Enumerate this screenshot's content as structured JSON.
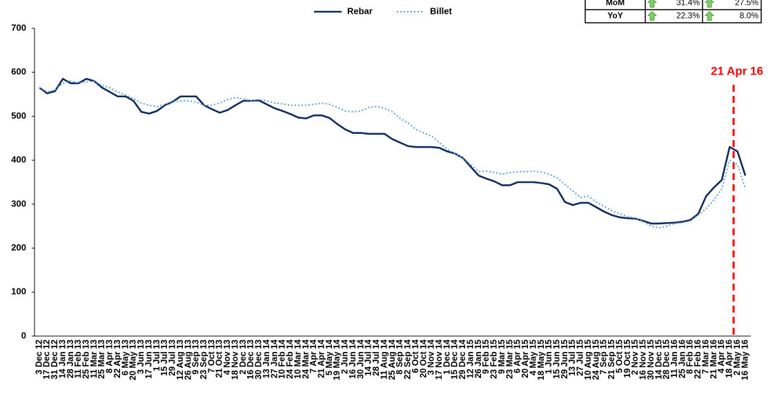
{
  "chart_data": {
    "type": "line",
    "annotation": "21 Apr 16",
    "categories": [
      "3 Dec 12",
      "17 Dec 12",
      "31 Dec 12",
      "14 Jan 13",
      "28 Jan 13",
      "11 Feb 13",
      "25 Feb 13",
      "11 Mar 13",
      "25 Mar 13",
      "8 Apr 13",
      "22 Apr 13",
      "6 May 13",
      "20 May 13",
      "3 Jun 13",
      "17 Jun 13",
      "1 Jul 13",
      "15 Jul 13",
      "29 Jul 13",
      "12 Aug 13",
      "26 Aug 13",
      "9 Sep 13",
      "23 Sep 13",
      "7 Oct 13",
      "21 Oct 13",
      "4 Nov 13",
      "18 Nov 13",
      "2 Dec 13",
      "16 Dec 13",
      "30 Dec 13",
      "13 Jan 14",
      "27 Jan 14",
      "10 Feb 14",
      "24 Feb 14",
      "10 Mar 14",
      "24 Mar 14",
      "7 Apr 14",
      "21 Apr 14",
      "5 May 14",
      "19 May 14",
      "2 Jun 14",
      "16 Jun 14",
      "30 Jun 14",
      "14 Jul 14",
      "28 Jul 14",
      "11 Aug 14",
      "25 Aug 14",
      "8 Sep 14",
      "22 Sep 14",
      "6 Oct 14",
      "20 Oct 14",
      "3 Nov 14",
      "17 Nov 14",
      "1 Dec 14",
      "15 Dec 14",
      "29 Dec 14",
      "12 Jan 15",
      "26 Jan 15",
      "9 Feb 15",
      "23 Feb 15",
      "9 Mar 15",
      "23 Mar 15",
      "6 Apr 15",
      "20 Apr 15",
      "4 May 15",
      "18 May 15",
      "1 Jun 15",
      "15 Jun 15",
      "29 Jun 15",
      "13 Jul 15",
      "27 Jul 15",
      "10 Aug 15",
      "24 Aug 15",
      "7 Sep 15",
      "21 Sep 15",
      "5 Oct 15",
      "19 Oct 15",
      "2 Nov 15",
      "16 Nov 15",
      "30 Nov 15",
      "14 Dec 15",
      "28 Dec 15",
      "11 Jan 16",
      "25 Jan 16",
      "8 Feb 16",
      "22 Feb 16",
      "7 Mar 16",
      "21 Mar 16",
      "4 Apr 16",
      "18 Apr 16",
      "2 May 16",
      "16 May 16"
    ],
    "series": [
      {
        "name": "Rebar",
        "color": "#0f2a5f",
        "style": "solid",
        "values": [
          565,
          552,
          557,
          585,
          575,
          575,
          585,
          580,
          565,
          555,
          545,
          545,
          535,
          510,
          506,
          512,
          525,
          533,
          545,
          545,
          545,
          525,
          516,
          508,
          514,
          525,
          535,
          535,
          536,
          527,
          518,
          512,
          505,
          497,
          495,
          502,
          502,
          496,
          482,
          470,
          462,
          462,
          460,
          460,
          460,
          448,
          440,
          432,
          430,
          430,
          430,
          428,
          420,
          415,
          405,
          385,
          365,
          358,
          352,
          343,
          343,
          350,
          350,
          350,
          348,
          345,
          335,
          305,
          298,
          303,
          303,
          293,
          283,
          275,
          270,
          268,
          267,
          262,
          256,
          256,
          257,
          258,
          260,
          264,
          278,
          318,
          338,
          355,
          430,
          420,
          365
        ]
      },
      {
        "name": "Billet",
        "color": "#5b9bd5",
        "style": "dotted",
        "values": [
          565,
          555,
          560,
          575,
          580,
          575,
          578,
          580,
          570,
          565,
          555,
          548,
          540,
          530,
          525,
          522,
          527,
          533,
          535,
          535,
          532,
          525,
          525,
          530,
          538,
          542,
          540,
          535,
          538,
          535,
          530,
          528,
          525,
          525,
          525,
          527,
          530,
          527,
          520,
          512,
          510,
          512,
          520,
          522,
          518,
          510,
          495,
          485,
          470,
          462,
          455,
          440,
          425,
          415,
          405,
          390,
          375,
          375,
          372,
          368,
          372,
          374,
          374,
          375,
          373,
          368,
          360,
          345,
          330,
          315,
          318,
          305,
          295,
          285,
          278,
          272,
          268,
          260,
          250,
          246,
          250,
          256,
          258,
          262,
          275,
          290,
          310,
          335,
          400,
          390,
          335
        ]
      }
    ],
    "ylim": [
      0,
      700
    ],
    "yticks": [
      0,
      100,
      200,
      300,
      400,
      500,
      600,
      700
    ],
    "grid": false
  },
  "table": {
    "rows": [
      [
        "MoM",
        "31.4%",
        "27.5%"
      ],
      [
        "YoY",
        "22.3%",
        "8.0%"
      ]
    ]
  }
}
